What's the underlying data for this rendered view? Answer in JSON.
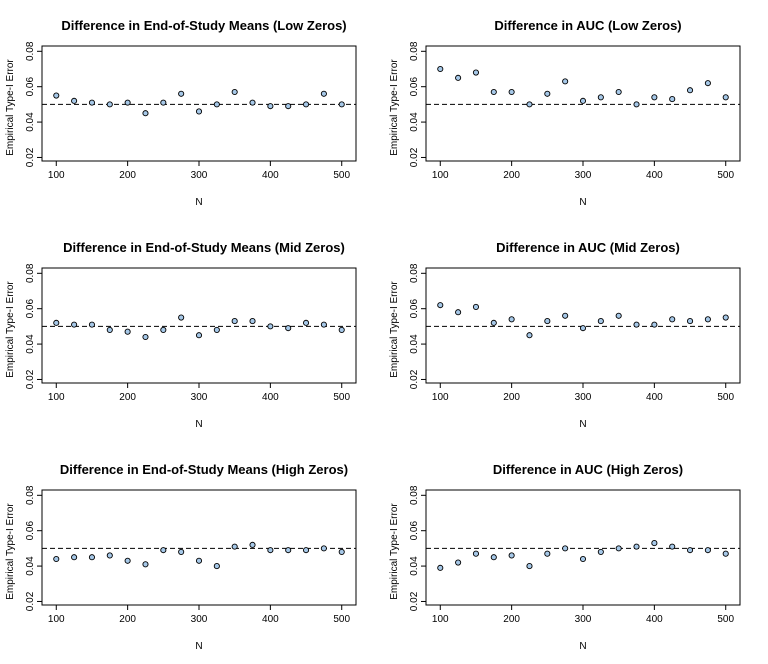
{
  "chart_data": [
    {
      "type": "scatter",
      "title": "Difference in End-of-Study Means (Low Zeros)",
      "xlabel": "N",
      "ylabel": "Empirical Type-I Error",
      "x": [
        100,
        125,
        150,
        175,
        200,
        225,
        250,
        275,
        300,
        325,
        350,
        375,
        400,
        425,
        450,
        475,
        500
      ],
      "y": [
        0.055,
        0.052,
        0.051,
        0.05,
        0.051,
        0.045,
        0.051,
        0.056,
        0.046,
        0.05,
        0.057,
        0.051,
        0.049,
        0.049,
        0.05,
        0.056,
        0.05
      ],
      "xticks": [
        100,
        200,
        300,
        400,
        500
      ],
      "yticks": [
        0.02,
        0.04,
        0.06,
        0.08
      ],
      "xlim": [
        80,
        520
      ],
      "ylim": [
        0.018,
        0.083
      ],
      "reference_line": 0.05,
      "point_color": "#a6c8e8",
      "grid": false
    },
    {
      "type": "scatter",
      "title": "Difference in AUC (Low Zeros)",
      "xlabel": "N",
      "ylabel": "Empirical Type-I Error",
      "x": [
        100,
        125,
        150,
        175,
        200,
        225,
        250,
        275,
        300,
        325,
        350,
        375,
        400,
        425,
        450,
        475,
        500
      ],
      "y": [
        0.07,
        0.065,
        0.068,
        0.057,
        0.057,
        0.05,
        0.056,
        0.063,
        0.052,
        0.054,
        0.057,
        0.05,
        0.054,
        0.053,
        0.058,
        0.062,
        0.054
      ],
      "xticks": [
        100,
        200,
        300,
        400,
        500
      ],
      "yticks": [
        0.02,
        0.04,
        0.06,
        0.08
      ],
      "xlim": [
        80,
        520
      ],
      "ylim": [
        0.018,
        0.083
      ],
      "reference_line": 0.05,
      "point_color": "#a6c8e8",
      "grid": false
    },
    {
      "type": "scatter",
      "title": "Difference in End-of-Study Means (Mid Zeros)",
      "xlabel": "N",
      "ylabel": "Empirical Type-I Error",
      "x": [
        100,
        125,
        150,
        175,
        200,
        225,
        250,
        275,
        300,
        325,
        350,
        375,
        400,
        425,
        450,
        475,
        500
      ],
      "y": [
        0.052,
        0.051,
        0.051,
        0.048,
        0.047,
        0.044,
        0.048,
        0.055,
        0.045,
        0.048,
        0.053,
        0.053,
        0.05,
        0.049,
        0.052,
        0.051,
        0.048
      ],
      "xticks": [
        100,
        200,
        300,
        400,
        500
      ],
      "yticks": [
        0.02,
        0.04,
        0.06,
        0.08
      ],
      "xlim": [
        80,
        520
      ],
      "ylim": [
        0.018,
        0.083
      ],
      "reference_line": 0.05,
      "point_color": "#a6c8e8",
      "grid": false
    },
    {
      "type": "scatter",
      "title": "Difference in AUC (Mid Zeros)",
      "xlabel": "N",
      "ylabel": "Empirical Type-I Error",
      "x": [
        100,
        125,
        150,
        175,
        200,
        225,
        250,
        275,
        300,
        325,
        350,
        375,
        400,
        425,
        450,
        475,
        500
      ],
      "y": [
        0.062,
        0.058,
        0.061,
        0.052,
        0.054,
        0.045,
        0.053,
        0.056,
        0.049,
        0.053,
        0.056,
        0.051,
        0.051,
        0.054,
        0.053,
        0.054,
        0.055
      ],
      "xticks": [
        100,
        200,
        300,
        400,
        500
      ],
      "yticks": [
        0.02,
        0.04,
        0.06,
        0.08
      ],
      "xlim": [
        80,
        520
      ],
      "ylim": [
        0.018,
        0.083
      ],
      "reference_line": 0.05,
      "point_color": "#a6c8e8",
      "grid": false
    },
    {
      "type": "scatter",
      "title": "Difference in End-of-Study Means (High Zeros)",
      "xlabel": "N",
      "ylabel": "Empirical Type-I Error",
      "x": [
        100,
        125,
        150,
        175,
        200,
        225,
        250,
        275,
        300,
        325,
        350,
        375,
        400,
        425,
        450,
        475,
        500
      ],
      "y": [
        0.044,
        0.045,
        0.045,
        0.046,
        0.043,
        0.041,
        0.049,
        0.048,
        0.043,
        0.04,
        0.051,
        0.052,
        0.049,
        0.049,
        0.049,
        0.05,
        0.048
      ],
      "xticks": [
        100,
        200,
        300,
        400,
        500
      ],
      "yticks": [
        0.02,
        0.04,
        0.06,
        0.08
      ],
      "xlim": [
        80,
        520
      ],
      "ylim": [
        0.018,
        0.083
      ],
      "reference_line": 0.05,
      "point_color": "#a6c8e8",
      "grid": false
    },
    {
      "type": "scatter",
      "title": "Difference in AUC (High Zeros)",
      "xlabel": "N",
      "ylabel": "Empirical Type-I Error",
      "x": [
        100,
        125,
        150,
        175,
        200,
        225,
        250,
        275,
        300,
        325,
        350,
        375,
        400,
        425,
        450,
        475,
        500
      ],
      "y": [
        0.039,
        0.042,
        0.047,
        0.045,
        0.046,
        0.04,
        0.047,
        0.05,
        0.044,
        0.048,
        0.05,
        0.051,
        0.053,
        0.051,
        0.049,
        0.049,
        0.047
      ],
      "xticks": [
        100,
        200,
        300,
        400,
        500
      ],
      "yticks": [
        0.02,
        0.04,
        0.06,
        0.08
      ],
      "xlim": [
        80,
        520
      ],
      "ylim": [
        0.018,
        0.083
      ],
      "reference_line": 0.05,
      "point_color": "#a6c8e8",
      "grid": false
    }
  ]
}
